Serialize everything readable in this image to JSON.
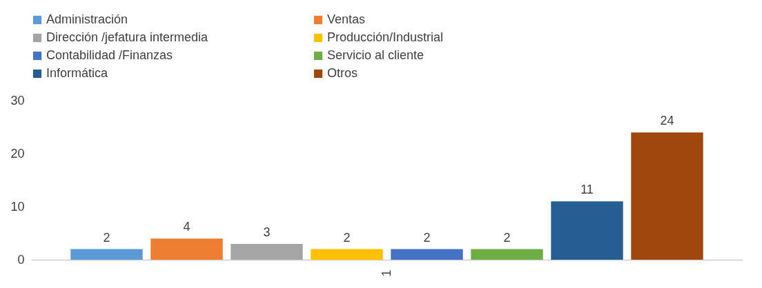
{
  "chart_data": {
    "type": "bar",
    "categories": [
      "1"
    ],
    "series": [
      {
        "name": "Administración",
        "color": "#5b9bd5",
        "values": [
          2
        ]
      },
      {
        "name": "Ventas",
        "color": "#ed7d31",
        "values": [
          4
        ]
      },
      {
        "name": "Dirección /jefatura intermedia",
        "color": "#a5a5a5",
        "values": [
          3
        ]
      },
      {
        "name": "Producción/Industrial",
        "color": "#ffc000",
        "values": [
          2
        ]
      },
      {
        "name": "Contabilidad /Finanzas",
        "color": "#4472c4",
        "values": [
          2
        ]
      },
      {
        "name": "Servicio al cliente",
        "color": "#70ad47",
        "values": [
          2
        ]
      },
      {
        "name": "Informática",
        "color": "#255e91",
        "values": [
          11
        ]
      },
      {
        "name": "Otros",
        "color": "#9e480e",
        "values": [
          24
        ]
      }
    ],
    "ylim": [
      0,
      30
    ],
    "yticks": [
      0,
      10,
      20,
      30
    ],
    "legend": "top",
    "data_labels": true,
    "grid": false
  }
}
